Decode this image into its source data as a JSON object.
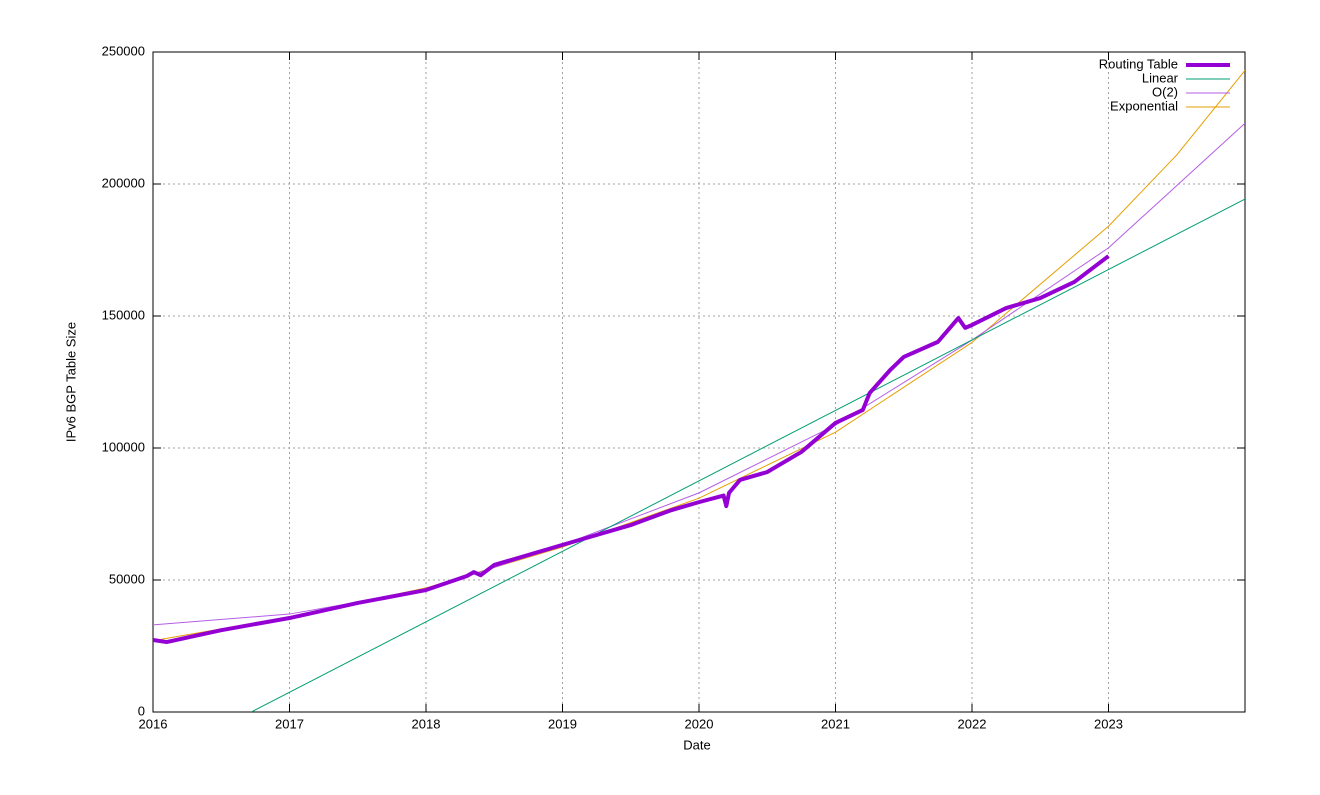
{
  "chart_data": {
    "type": "line",
    "xlabel": "Date",
    "ylabel": "IPv6 BGP Table Size",
    "xlim": [
      2016,
      2024
    ],
    "xticks": [
      2016,
      2017,
      2018,
      2019,
      2020,
      2021,
      2022,
      2023
    ],
    "ylim": [
      0,
      250000
    ],
    "yticks": [
      0,
      50000,
      100000,
      150000,
      200000,
      250000
    ],
    "grid": true,
    "legend": "top-right",
    "series": [
      {
        "name": "Routing Table",
        "color": "#9400d3",
        "width": 4,
        "x": [
          2016.0,
          2016.1,
          2016.5,
          2017.0,
          2017.5,
          2018.0,
          2018.3,
          2018.35,
          2018.4,
          2018.5,
          2019.0,
          2019.5,
          2019.8,
          2020.0,
          2020.18,
          2020.2,
          2020.22,
          2020.3,
          2020.5,
          2020.75,
          2021.0,
          2021.2,
          2021.25,
          2021.4,
          2021.5,
          2021.75,
          2021.9,
          2021.95,
          2022.0,
          2022.25,
          2022.5,
          2022.75,
          2023.0
        ],
        "values": [
          27300,
          26500,
          31000,
          35600,
          41300,
          46200,
          51500,
          53000,
          51800,
          55700,
          63300,
          70800,
          76500,
          79500,
          82000,
          78000,
          83000,
          87900,
          90900,
          98500,
          109500,
          114400,
          120800,
          129500,
          134500,
          140200,
          149200,
          145500,
          146600,
          153000,
          156800,
          162900,
          172700
        ]
      },
      {
        "name": "Linear",
        "color": "#009e73",
        "width": 1,
        "x": [
          2016.72,
          2024
        ],
        "values": [
          0,
          194300
        ]
      },
      {
        "name": "O(2)",
        "color": "#b45ee6",
        "width": 1,
        "x": [
          2016,
          2017,
          2018,
          2019,
          2020,
          2021,
          2022,
          2023,
          2024
        ],
        "values": [
          33000,
          37100,
          46200,
          63300,
          83000,
          108700,
          140900,
          175800,
          223000
        ]
      },
      {
        "name": "Exponential",
        "color": "#e69f00",
        "width": 1,
        "x": [
          2016,
          2017,
          2018,
          2019,
          2020,
          2021,
          2022,
          2023,
          2023.5,
          2024
        ],
        "values": [
          27000,
          36000,
          47000,
          62500,
          81000,
          106000,
          140000,
          184000,
          211000,
          243000
        ]
      }
    ]
  }
}
